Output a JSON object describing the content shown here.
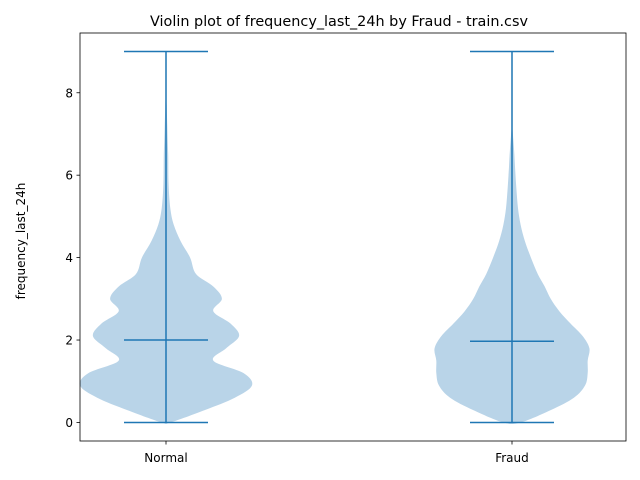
{
  "chart_data": {
    "type": "violin",
    "title": "Violin plot of frequency_last_24h by Fraud - train.csv",
    "xlabel": "",
    "ylabel": "frequency_last_24h",
    "categories": [
      "Normal",
      "Fraud"
    ],
    "ylim": [
      -0.45,
      9.45
    ],
    "yticks": [
      0,
      2,
      4,
      6,
      8
    ],
    "ytick_labels": [
      "0",
      "2",
      "4",
      "6",
      "8"
    ],
    "grid": false,
    "colors": {
      "body": "#b9d4e8",
      "line": "#1f77b4"
    },
    "series": [
      {
        "category": "Normal",
        "min": 0,
        "median": 2,
        "max": 9,
        "density_profile": [
          [
            0.0,
            0.05
          ],
          [
            0.3,
            0.45
          ],
          [
            0.6,
            0.8
          ],
          [
            0.9,
            1.0
          ],
          [
            1.2,
            0.9
          ],
          [
            1.5,
            0.55
          ],
          [
            1.8,
            0.7
          ],
          [
            2.1,
            0.85
          ],
          [
            2.4,
            0.75
          ],
          [
            2.7,
            0.55
          ],
          [
            3.0,
            0.65
          ],
          [
            3.3,
            0.55
          ],
          [
            3.6,
            0.35
          ],
          [
            4.0,
            0.28
          ],
          [
            4.4,
            0.17
          ],
          [
            4.8,
            0.09
          ],
          [
            5.2,
            0.05
          ],
          [
            5.8,
            0.03
          ],
          [
            6.5,
            0.025
          ],
          [
            7.2,
            0.015
          ],
          [
            7.7,
            0.008
          ],
          [
            8.2,
            0.0
          ]
        ]
      },
      {
        "category": "Fraud",
        "min": 0,
        "median": 1.97,
        "max": 9,
        "density_profile": [
          [
            0.0,
            0.1
          ],
          [
            0.3,
            0.45
          ],
          [
            0.6,
            0.72
          ],
          [
            0.9,
            0.85
          ],
          [
            1.2,
            0.88
          ],
          [
            1.5,
            0.88
          ],
          [
            1.8,
            0.9
          ],
          [
            2.1,
            0.82
          ],
          [
            2.4,
            0.68
          ],
          [
            2.7,
            0.55
          ],
          [
            3.0,
            0.45
          ],
          [
            3.3,
            0.38
          ],
          [
            3.6,
            0.3
          ],
          [
            4.0,
            0.22
          ],
          [
            4.4,
            0.15
          ],
          [
            4.8,
            0.1
          ],
          [
            5.2,
            0.07
          ],
          [
            5.7,
            0.05
          ],
          [
            6.2,
            0.035
          ],
          [
            6.6,
            0.025
          ],
          [
            7.0,
            0.01
          ],
          [
            7.3,
            0.0
          ]
        ]
      }
    ]
  }
}
